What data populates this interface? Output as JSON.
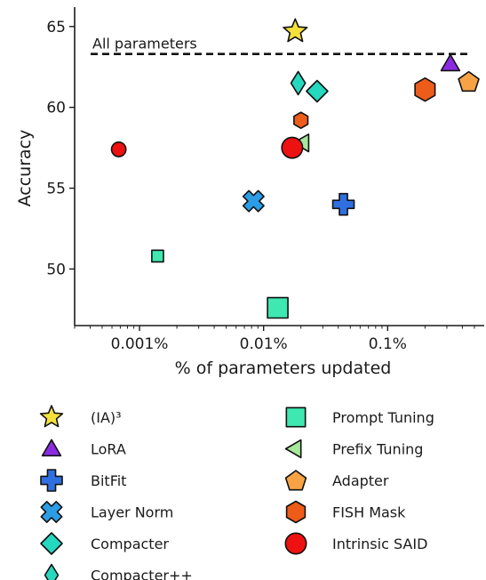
{
  "chart_data": {
    "type": "scatter",
    "xlabel": "% of parameters updated",
    "ylabel": "Accuracy",
    "xscale": "log",
    "xlim": [
      0.0003,
      0.6
    ],
    "ylim": [
      46.5,
      66.2
    ],
    "x_ticks": [
      {
        "value": 0.001,
        "label": "0.001%"
      },
      {
        "value": 0.01,
        "label": "0.01%"
      },
      {
        "value": 0.1,
        "label": "0.1%"
      }
    ],
    "y_ticks": [
      {
        "value": 50,
        "label": "50"
      },
      {
        "value": 55,
        "label": "55"
      },
      {
        "value": 60,
        "label": "60"
      },
      {
        "value": 65,
        "label": "65"
      }
    ],
    "reference_line": {
      "label": "All parameters",
      "y": 63.3,
      "style": "dashed"
    },
    "grid": false,
    "legend_position": "bottom",
    "series": [
      {
        "name": "(IA)³",
        "marker": "star",
        "color": "#f5e13c",
        "points": [
          {
            "x": 0.018,
            "y": 64.7
          }
        ]
      },
      {
        "name": "LoRA",
        "marker": "triangle-up",
        "color": "#8a2be2",
        "points": [
          {
            "x": 0.32,
            "y": 62.7
          }
        ]
      },
      {
        "name": "BitFit",
        "marker": "plus",
        "color": "#2f6fe0",
        "points": [
          {
            "x": 0.044,
            "y": 54.0
          }
        ]
      },
      {
        "name": "Layer Norm",
        "marker": "x",
        "color": "#2a9de4",
        "points": [
          {
            "x": 0.0083,
            "y": 54.2
          }
        ]
      },
      {
        "name": "Compacter",
        "marker": "diamond",
        "color": "#25d8c0",
        "points": [
          {
            "x": 0.027,
            "y": 61.0
          }
        ]
      },
      {
        "name": "Compacter++",
        "marker": "thin-diamond",
        "color": "#25d8c0",
        "points": [
          {
            "x": 0.019,
            "y": 61.5
          }
        ]
      },
      {
        "name": "Prompt Tuning",
        "marker": "square",
        "color": "#3ee8b0",
        "points": [
          {
            "x": 0.0014,
            "y": 50.8
          },
          {
            "x": 0.013,
            "y": 47.6
          }
        ]
      },
      {
        "name": "Prefix Tuning",
        "marker": "triangle-left",
        "color": "#a8e89c",
        "points": [
          {
            "x": 0.021,
            "y": 57.8
          }
        ]
      },
      {
        "name": "Adapter",
        "marker": "pentagon",
        "color": "#f7a345",
        "points": [
          {
            "x": 0.45,
            "y": 61.6
          }
        ]
      },
      {
        "name": "FISH Mask",
        "marker": "hexagon",
        "color": "#ee5c1a",
        "points": [
          {
            "x": 0.2,
            "y": 61.1
          },
          {
            "x": 0.02,
            "y": 59.2
          }
        ]
      },
      {
        "name": "Intrinsic SAID",
        "marker": "circle",
        "color": "#ee1111",
        "points": [
          {
            "x": 0.00068,
            "y": 57.4
          },
          {
            "x": 0.017,
            "y": 57.5
          }
        ]
      }
    ]
  }
}
